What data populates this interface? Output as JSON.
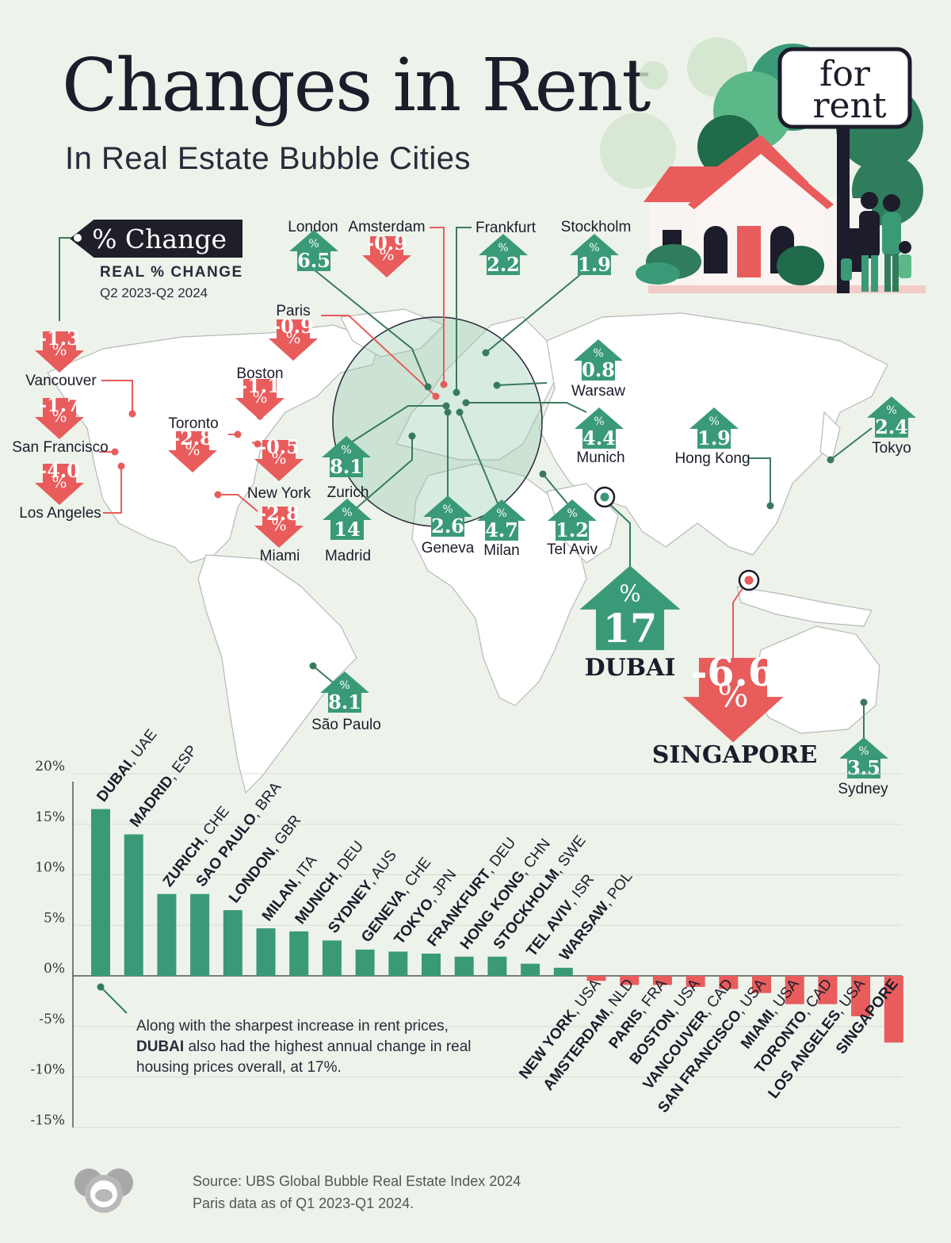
{
  "header": {
    "title": "Changes in Rent",
    "subtitle": "In Real Estate Bubble Cities",
    "sign_line1": "for",
    "sign_line2": "rent"
  },
  "legend": {
    "tag": "% Change",
    "line1": "REAL % CHANGE",
    "line2": "Q2 2023-Q2 2024"
  },
  "colors": {
    "positive": "#3a9a78",
    "negative": "#e85c5c",
    "background": "#edf3eb",
    "text": "#1c1c2b"
  },
  "map_labels": [
    {
      "name": "London",
      "value": "6.5"
    },
    {
      "name": "Amsterdam",
      "value": "-0.9"
    },
    {
      "name": "Frankfurt",
      "value": "2.2"
    },
    {
      "name": "Stockholm",
      "value": "1.9"
    },
    {
      "name": "Paris",
      "value": "-0.9"
    },
    {
      "name": "Vancouver",
      "value": "-1.3"
    },
    {
      "name": "Boston",
      "value": "-1.1"
    },
    {
      "name": "Toronto",
      "value": "-2.8"
    },
    {
      "name": "San Francisco",
      "value": "-1.7"
    },
    {
      "name": "Los Angeles",
      "value": "-4.0"
    },
    {
      "name": "New York",
      "value": "-0.5"
    },
    {
      "name": "Miami",
      "value": "-2.8"
    },
    {
      "name": "Zurich",
      "value": "8.1"
    },
    {
      "name": "Madrid",
      "value": "14"
    },
    {
      "name": "Geneva",
      "value": "2.6"
    },
    {
      "name": "Milan",
      "value": "4.7"
    },
    {
      "name": "Tel Aviv",
      "value": "1.2"
    },
    {
      "name": "Warsaw",
      "value": "0.8"
    },
    {
      "name": "Munich",
      "value": "4.4"
    },
    {
      "name": "Hong Kong",
      "value": "1.9"
    },
    {
      "name": "Tokyo",
      "value": "2.4"
    },
    {
      "name": "DUBAI",
      "value": "17"
    },
    {
      "name": "SINGAPORE",
      "value": "-6.6"
    },
    {
      "name": "São Paulo",
      "value": "8.1"
    },
    {
      "name": "Sydney",
      "value": "3.5"
    }
  ],
  "chart_data": {
    "type": "bar",
    "categories": [
      [
        "DUBAI",
        "UAE"
      ],
      [
        "MADRID",
        "ESP"
      ],
      [
        "ZURICH",
        "CHE"
      ],
      [
        "SAO PAULO",
        "BRA"
      ],
      [
        "LONDON",
        "GBR"
      ],
      [
        "MILAN",
        "ITA"
      ],
      [
        "MUNICH",
        "DEU"
      ],
      [
        "SYDNEY",
        "AUS"
      ],
      [
        "GENEVA",
        "CHE"
      ],
      [
        "TOKYO",
        "JPN"
      ],
      [
        "FRANKFURT",
        "DEU"
      ],
      [
        "HONG KONG",
        "CHN"
      ],
      [
        "STOCKHOLM",
        "SWE"
      ],
      [
        "TEL AVIV",
        "ISR"
      ],
      [
        "WARSAW",
        "POL"
      ],
      [
        "NEW YORK",
        "USA"
      ],
      [
        "AMSTERDAM",
        "NLD"
      ],
      [
        "PARIS",
        "FRA"
      ],
      [
        "BOSTON",
        "USA"
      ],
      [
        "VANCOUVER",
        "CAD"
      ],
      [
        "SAN FRANCISCO",
        "USA"
      ],
      [
        "MIAMI",
        "USA"
      ],
      [
        "TORONTO",
        "CAD"
      ],
      [
        "LOS ANGELES",
        "USA"
      ],
      [
        "SINGAPORE",
        ""
      ]
    ],
    "values": [
      16.5,
      14,
      8.1,
      8.1,
      6.5,
      4.7,
      4.4,
      3.5,
      2.6,
      2.4,
      2.2,
      1.9,
      1.9,
      1.2,
      0.8,
      -0.5,
      -0.9,
      -0.9,
      -1.1,
      -1.3,
      -1.7,
      -2.8,
      -2.8,
      -4.0,
      -6.6
    ],
    "yticks": [
      "20%",
      "15%",
      "10%",
      "5%",
      "0%",
      "-5%",
      "-10%",
      "-15%"
    ],
    "ylim": [
      -15,
      20
    ],
    "grid": true
  },
  "annotation": {
    "text_before": "Along with the sharpest increase in rent prices, ",
    "bold": "DUBAI",
    "text_after": " also had the highest annual change in real housing prices overall, at 17%."
  },
  "source": {
    "line1": "Source: UBS Global Bubble Real Estate Index 2024",
    "line2": "Paris data as of Q1 2023-Q1 2024."
  }
}
